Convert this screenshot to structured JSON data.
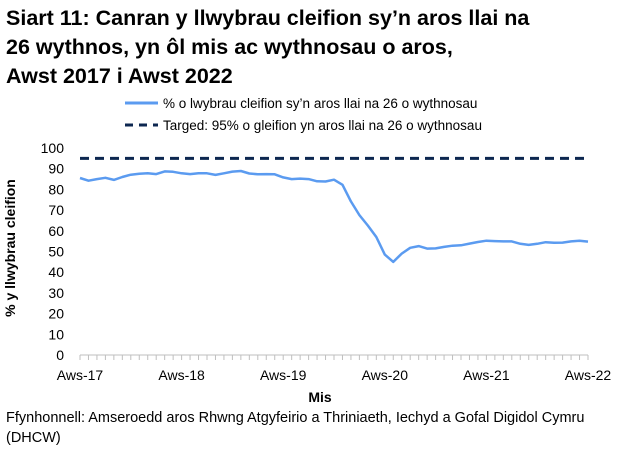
{
  "title_lines": [
    "Siart 11: Canran y llwybrau cleifion sy’n aros llai na",
    "26 wythnos, yn ôl mis ac wythnosau o aros,",
    "Awst 2017 i Awst 2022"
  ],
  "source_lines": [
    "Ffynhonnell: Amseroedd aros Rhwng Atgyfeirio a Thriniaeth, Iechyd a Gofal Digidol Cymru",
    "(DHCW)"
  ],
  "colors": {
    "series": "#5b9bf0",
    "target": "#0d2750",
    "axis": "#bfbfbf"
  },
  "chart_data": {
    "type": "line",
    "xlabel": "Mis",
    "ylabel": "% y llwybrau cleifion",
    "ylim": [
      0,
      100
    ],
    "yticks": [
      0,
      10,
      20,
      30,
      40,
      50,
      60,
      70,
      80,
      90,
      100
    ],
    "x_tick_labels": [
      "Aws-17",
      "Aws-18",
      "Aws-19",
      "Aws-20",
      "Aws-21",
      "Aws-22"
    ],
    "x_start": "2017-08",
    "x_end": "2022-08",
    "grid": false,
    "legend_position": "top",
    "series": [
      {
        "name": "% o lwybrau cleifion sy’n aros llai na 26 o wythnosau",
        "style": "solid",
        "values": [
          85.5,
          84.2,
          85.0,
          85.6,
          84.6,
          86.0,
          87.1,
          87.6,
          87.8,
          87.4,
          88.7,
          88.5,
          87.8,
          87.4,
          87.8,
          87.8,
          87.0,
          87.8,
          88.6,
          88.9,
          87.7,
          87.3,
          87.4,
          87.3,
          85.8,
          85.0,
          85.2,
          85.0,
          83.9,
          83.8,
          84.7,
          82.2,
          74.2,
          67.6,
          62.5,
          57.0,
          48.5,
          45.0,
          49.0,
          51.8,
          52.6,
          51.4,
          51.5,
          52.2,
          52.8,
          53.0,
          53.8,
          54.6,
          55.2,
          55.0,
          54.9,
          54.9,
          53.7,
          53.2,
          53.7,
          54.5,
          54.2,
          54.3,
          54.9,
          55.2,
          54.8
        ]
      },
      {
        "name": "Targed: 95% o gleifion yn aros llai na 26 o wythnosau",
        "style": "dashed",
        "values": [
          95,
          95
        ]
      }
    ]
  }
}
